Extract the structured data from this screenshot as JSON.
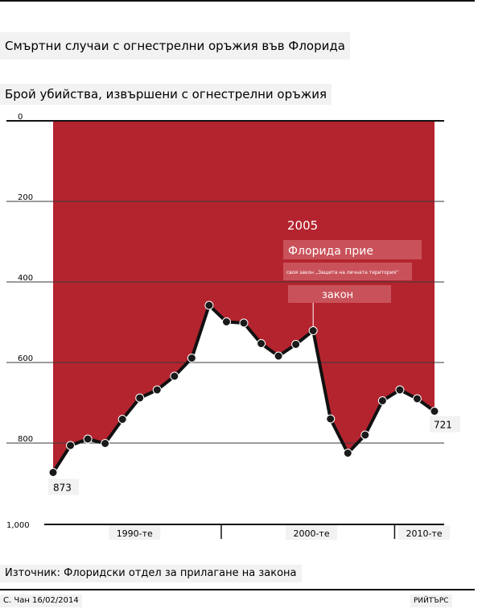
{
  "header": {
    "title": "Смъртни случаи с огнестрелни оръжия във Флорида",
    "subtitle": "Брой убийства, извършени с огнестрелни оръжия"
  },
  "chart_data": {
    "type": "area",
    "title": "Смъртни случаи с огнестрелни оръжия във Флорида",
    "subtitle": "Брой убийства, извършени с огнестрелни оръжия",
    "y_inverted": true,
    "ylim": [
      0,
      1000
    ],
    "yticks": [
      "0",
      "200",
      "400",
      "600",
      "800",
      "1,000"
    ],
    "ytick_values": [
      0,
      200,
      400,
      600,
      800,
      1000
    ],
    "x": [
      1990,
      1991,
      1992,
      1993,
      1994,
      1995,
      1996,
      1997,
      1998,
      1999,
      2000,
      2001,
      2002,
      2003,
      2004,
      2005,
      2006,
      2007,
      2008,
      2009,
      2010,
      2011,
      2012
    ],
    "xlim": [
      1990,
      2012
    ],
    "decade_labels": [
      "1990-те",
      "2000-те",
      "2010-те"
    ],
    "decade_label_years": [
      1994.7,
      2004.9,
      2011.4
    ],
    "series": [
      {
        "values": [
          873,
          806,
          790,
          801,
          741,
          688,
          668,
          634,
          589,
          458,
          499,
          502,
          553,
          584,
          555,
          521,
          740,
          825,
          780,
          695,
          668,
          690,
          721
        ]
      }
    ],
    "data_labels": {
      "first": "873",
      "last": "721"
    },
    "annotation": {
      "year": 2005,
      "heading": "2005",
      "line1": "Флорида прие",
      "line2": "своя закон „Защита на личната територия“",
      "line3": "закон"
    },
    "grid": true,
    "area_color": "#b4242f",
    "line_color": "#111111"
  },
  "footer": {
    "source": "Източник: Флоридски отдел за прилагане на закона",
    "credit": "С. Чан 16/02/2014",
    "brand": "РИЙТЪРС"
  }
}
